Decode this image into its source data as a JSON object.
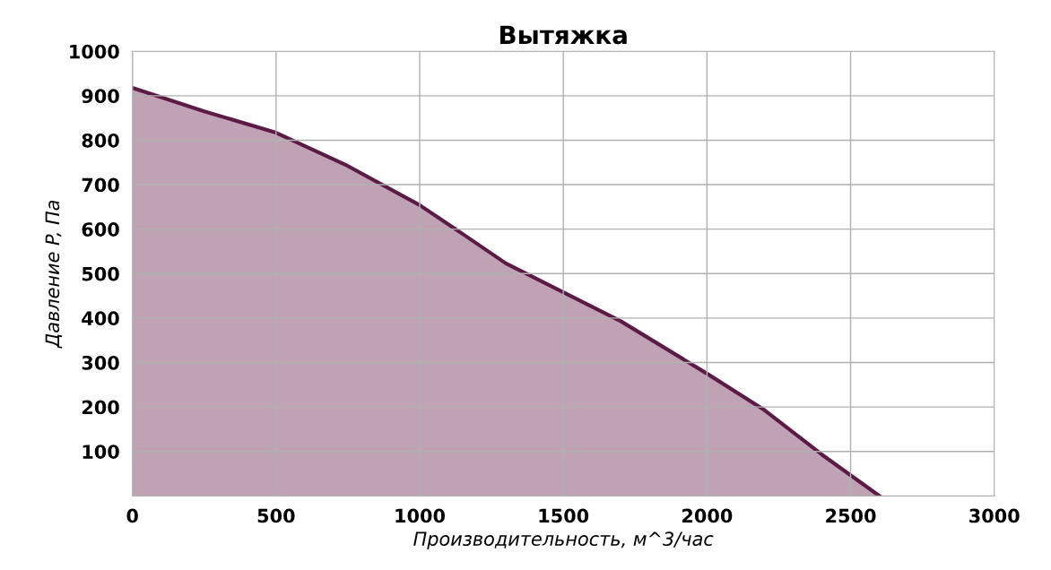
{
  "chart_data": {
    "type": "area",
    "title": "Вытяжка",
    "xlabel": "Производительность, м^3/час",
    "ylabel": "Давление P, Па",
    "x": [
      0,
      250,
      500,
      750,
      1000,
      1150,
      1300,
      1500,
      1700,
      2000,
      2200,
      2400,
      2600
    ],
    "series": [
      {
        "color": "#5e1a46",
        "values": [
          918,
          865,
          817,
          742,
          654,
          589,
          523,
          458,
          393,
          275,
          193,
          93,
          0
        ]
      }
    ],
    "xlim": [
      0,
      3000
    ],
    "xticks": [
      0,
      500,
      1000,
      1500,
      2000,
      2500,
      3000
    ],
    "ylim": [
      0,
      1000
    ],
    "yticks": [
      100,
      200,
      300,
      400,
      500,
      600,
      700,
      800,
      900,
      1000
    ],
    "grid": true
  }
}
